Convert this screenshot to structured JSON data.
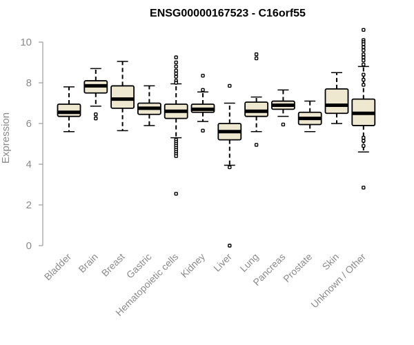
{
  "colors": {
    "box_fill": "#efe8d0",
    "box_stroke": "#000000",
    "axis": "#8a8a8a",
    "text_muted": "#8a8a8a"
  },
  "chart_data": {
    "type": "boxplot",
    "title": "ENSG00000167523 - C16orf55",
    "xlabel": "",
    "ylabel": "Expression",
    "ylim": [
      0,
      10.6
    ],
    "yticks": [
      0,
      2,
      4,
      6,
      8,
      10
    ],
    "grid": false,
    "categories": [
      "Bladder",
      "Brain",
      "Breast",
      "Gastric",
      "Hematopoietic cells",
      "Kidney",
      "Liver",
      "Lung",
      "Pancreas",
      "Prostate",
      "Skin",
      "Unknown / Other"
    ],
    "boxes": [
      {
        "whisker_low": 5.6,
        "q1": 6.35,
        "median": 6.55,
        "q3": 6.95,
        "whisker_high": 7.8,
        "outliers": []
      },
      {
        "whisker_low": 6.85,
        "q1": 7.5,
        "median": 7.85,
        "q3": 8.1,
        "whisker_high": 8.7,
        "outliers": [
          6.45,
          6.25
        ]
      },
      {
        "whisker_low": 5.65,
        "q1": 6.75,
        "median": 7.2,
        "q3": 7.85,
        "whisker_high": 9.05,
        "outliers": []
      },
      {
        "whisker_low": 5.9,
        "q1": 6.45,
        "median": 6.75,
        "q3": 7.0,
        "whisker_high": 7.85,
        "outliers": []
      },
      {
        "whisker_low": 5.3,
        "q1": 6.25,
        "median": 6.6,
        "q3": 6.95,
        "whisker_high": 7.95,
        "outliers": [
          9.25,
          9.0,
          8.8,
          8.6,
          8.45,
          8.3,
          8.1,
          8.0,
          5.2,
          5.1,
          5.0,
          4.9,
          4.8,
          4.7,
          4.6,
          4.5,
          4.4,
          2.55
        ]
      },
      {
        "whisker_low": 6.1,
        "q1": 6.55,
        "median": 6.7,
        "q3": 6.95,
        "whisker_high": 7.55,
        "outliers": [
          8.35,
          7.65,
          5.65
        ]
      },
      {
        "whisker_low": 3.95,
        "q1": 5.2,
        "median": 5.6,
        "q3": 6.0,
        "whisker_high": 7.0,
        "outliers": [
          7.85,
          3.85,
          0.0
        ]
      },
      {
        "whisker_low": 5.6,
        "q1": 6.35,
        "median": 6.6,
        "q3": 7.05,
        "whisker_high": 7.3,
        "outliers": [
          9.4,
          9.2,
          4.95
        ]
      },
      {
        "whisker_low": 6.35,
        "q1": 6.7,
        "median": 6.9,
        "q3": 7.1,
        "whisker_high": 7.65,
        "outliers": [
          5.95
        ]
      },
      {
        "whisker_low": 5.6,
        "q1": 5.95,
        "median": 6.25,
        "q3": 6.55,
        "whisker_high": 7.1,
        "outliers": []
      },
      {
        "whisker_low": 6.0,
        "q1": 6.5,
        "median": 6.9,
        "q3": 7.7,
        "whisker_high": 8.5,
        "outliers": []
      },
      {
        "whisker_low": 4.6,
        "q1": 5.9,
        "median": 6.5,
        "q3": 7.2,
        "whisker_high": 8.8,
        "outliers": [
          10.6,
          10.1,
          10.0,
          9.9,
          9.75,
          9.6,
          9.4,
          9.25,
          9.1,
          8.9,
          8.4,
          8.15,
          7.9,
          5.3,
          5.15,
          4.9,
          2.85
        ]
      }
    ]
  }
}
